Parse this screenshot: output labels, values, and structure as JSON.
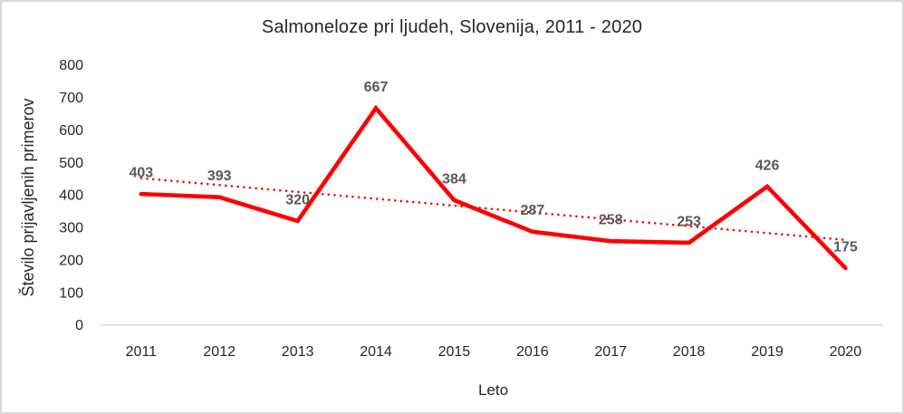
{
  "chart_data": {
    "type": "line",
    "title": "Salmoneloze pri ljudeh, Slovenija, 2011 - 2020",
    "xlabel": "Leto",
    "ylabel": "Število prijavljenih primerov",
    "categories": [
      "2011",
      "2012",
      "2013",
      "2014",
      "2015",
      "2016",
      "2017",
      "2018",
      "2019",
      "2020"
    ],
    "series": [
      {
        "name": "Število prijavljenih primerov",
        "values": [
          403,
          393,
          320,
          667,
          384,
          287,
          258,
          253,
          426,
          175
        ],
        "color": "#ff0000",
        "style": "solid",
        "data_labels": true
      }
    ],
    "trendline": {
      "type": "linear",
      "style": "dotted",
      "color": "#ff0000"
    },
    "ylim": [
      0,
      800
    ],
    "ytick_step": 100,
    "grid": false,
    "legend": false,
    "axis_color": "#d9d9d9",
    "tick_label_color": "#262626",
    "data_label_color": "#595959"
  }
}
